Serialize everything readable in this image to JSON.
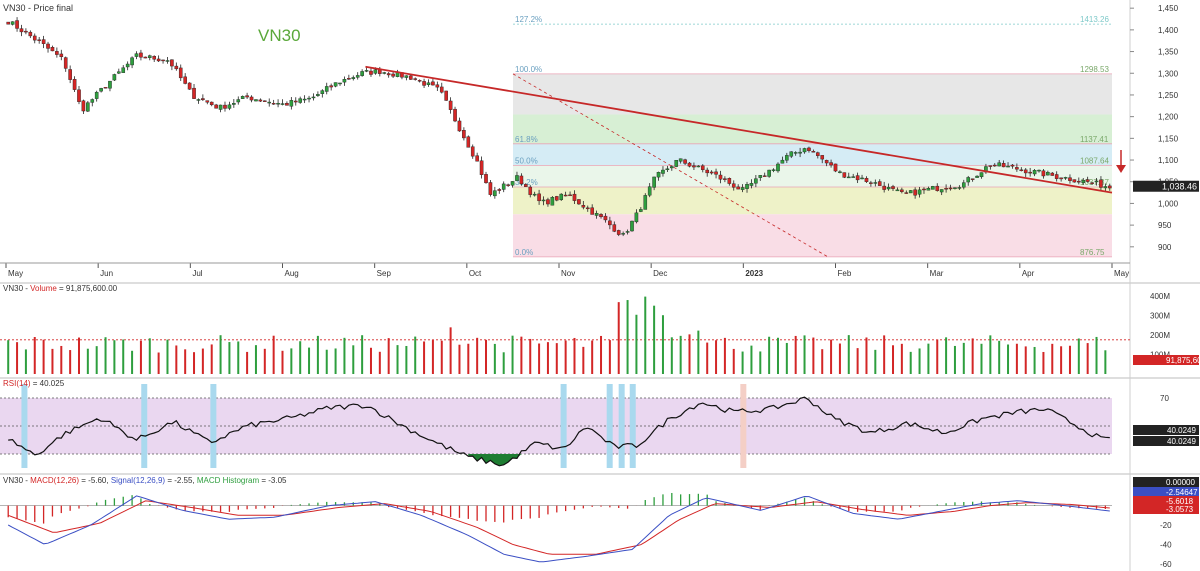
{
  "window": {
    "title": "VN30 - Price final"
  },
  "colors": {
    "up": "#2e9e3e",
    "down": "#d32626",
    "trend": "#c62828",
    "rsi_band": "#ead7f0",
    "rsi_marker": "#a9d9ee",
    "rsi_marker_red": "#f4cfc6",
    "macd_line": "#3b4fc4",
    "signal_line": "#d32626"
  },
  "chart_data": [
    {
      "type": "candlestick",
      "title": "VN30",
      "x_labels": [
        "May",
        "Jun",
        "Jul",
        "Aug",
        "Sep",
        "Oct",
        "Nov",
        "Dec",
        "2023",
        "Feb",
        "Mar",
        "Apr",
        "May"
      ],
      "yticks": [
        900,
        950,
        1000,
        1050,
        1100,
        1150,
        1200,
        1250,
        1300,
        1350,
        1400,
        1450
      ],
      "ylim": [
        865,
        1455
      ],
      "last_price_label": "1,038.46",
      "closes_approx": [
        {
          "x": 0,
          "y": 1420
        },
        {
          "x": 0.35,
          "y": 1370
        },
        {
          "x": 0.6,
          "y": 1330
        },
        {
          "x": 0.8,
          "y": 1215
        },
        {
          "x": 1.1,
          "y": 1280
        },
        {
          "x": 1.4,
          "y": 1340
        },
        {
          "x": 1.75,
          "y": 1330
        },
        {
          "x": 2.0,
          "y": 1250
        },
        {
          "x": 2.3,
          "y": 1220
        },
        {
          "x": 2.6,
          "y": 1245
        },
        {
          "x": 3.0,
          "y": 1228
        },
        {
          "x": 3.3,
          "y": 1242
        },
        {
          "x": 3.6,
          "y": 1280
        },
        {
          "x": 3.85,
          "y": 1300
        },
        {
          "x": 4.05,
          "y": 1305
        },
        {
          "x": 4.4,
          "y": 1290
        },
        {
          "x": 4.7,
          "y": 1260
        },
        {
          "x": 4.85,
          "y": 1200
        },
        {
          "x": 5.1,
          "y": 1100
        },
        {
          "x": 5.25,
          "y": 1020
        },
        {
          "x": 5.55,
          "y": 1060
        },
        {
          "x": 5.8,
          "y": 1000
        },
        {
          "x": 6.1,
          "y": 1020
        },
        {
          "x": 6.3,
          "y": 990
        },
        {
          "x": 6.5,
          "y": 960
        },
        {
          "x": 6.7,
          "y": 925
        },
        {
          "x": 6.85,
          "y": 975
        },
        {
          "x": 7.05,
          "y": 1060
        },
        {
          "x": 7.3,
          "y": 1100
        },
        {
          "x": 7.7,
          "y": 1065
        },
        {
          "x": 8.0,
          "y": 1030
        },
        {
          "x": 8.2,
          "y": 1060
        },
        {
          "x": 8.5,
          "y": 1110
        },
        {
          "x": 8.7,
          "y": 1130
        },
        {
          "x": 9.05,
          "y": 1070
        },
        {
          "x": 9.4,
          "y": 1050
        },
        {
          "x": 9.75,
          "y": 1020
        },
        {
          "x": 10.1,
          "y": 1035
        },
        {
          "x": 10.4,
          "y": 1045
        },
        {
          "x": 10.7,
          "y": 1090
        },
        {
          "x": 11.0,
          "y": 1080
        },
        {
          "x": 11.35,
          "y": 1065
        },
        {
          "x": 11.75,
          "y": 1050
        },
        {
          "x": 12.0,
          "y": 1038
        }
      ],
      "trendline": {
        "from": {
          "x": 3.9,
          "y": 1315
        },
        "to": {
          "x": 12.0,
          "y": 1025
        }
      },
      "fibonacci": {
        "levels": [
          {
            "label": "127.2%",
            "price": 1413.26
          },
          {
            "label": "100.0%",
            "price": 1298.53
          },
          {
            "label": "61.8%",
            "price": 1137.41
          },
          {
            "label": "50.0%",
            "price": 1087.64
          },
          {
            "label": "38.2%",
            "price": 1037.87
          },
          {
            "label": "0.0%",
            "price": 876.75
          }
        ],
        "price_labels": [
          "1413.26",
          "1298.53",
          "1137.41",
          "1087.64",
          "1037.87",
          "876.75"
        ],
        "zones": [
          {
            "from": 1205,
            "to": 1298.53,
            "color": "#e7e7e7"
          },
          {
            "from": 1137.41,
            "to": 1205,
            "color": "#d7efd4"
          },
          {
            "from": 1087.64,
            "to": 1137.41,
            "color": "#d5ecf5"
          },
          {
            "from": 1037.87,
            "to": 1087.64,
            "color": "#eaf6ea"
          },
          {
            "from": 975,
            "to": 1037.87,
            "color": "#eef2c8"
          },
          {
            "from": 876.75,
            "to": 975,
            "color": "#f9dde6"
          }
        ]
      }
    },
    {
      "type": "bar",
      "title_parts": {
        "series": "VN30 - ",
        "name": "Volume",
        "value": " = 91,875,600.00"
      },
      "yticks": [
        "400M",
        "300M",
        "200M",
        "100M"
      ],
      "reference_line_value": 175000000,
      "last_value_label": "91,875,600"
    },
    {
      "type": "line",
      "title_parts": {
        "name": "RSI(14)",
        "value": " = 40.025"
      },
      "ylim": [
        20,
        80
      ],
      "band": [
        30,
        70
      ],
      "mid": 50,
      "ytick": "70",
      "last_value_labels": [
        "40.0249",
        "40.0249"
      ],
      "oversold_marks_x": [
        0.2,
        1.5,
        2.25,
        6.05,
        6.55,
        6.68,
        6.8
      ],
      "overbought_marks_x": [
        8.0
      ],
      "values_approx": [
        {
          "x": 0,
          "y": 41
        },
        {
          "x": 0.3,
          "y": 29
        },
        {
          "x": 0.6,
          "y": 44
        },
        {
          "x": 1.0,
          "y": 56
        },
        {
          "x": 1.4,
          "y": 40
        },
        {
          "x": 1.8,
          "y": 53
        },
        {
          "x": 2.2,
          "y": 38
        },
        {
          "x": 2.6,
          "y": 50
        },
        {
          "x": 3.1,
          "y": 56
        },
        {
          "x": 3.5,
          "y": 63
        },
        {
          "x": 3.9,
          "y": 65
        },
        {
          "x": 4.3,
          "y": 50
        },
        {
          "x": 4.6,
          "y": 40
        },
        {
          "x": 5.0,
          "y": 28
        },
        {
          "x": 5.4,
          "y": 22
        },
        {
          "x": 5.75,
          "y": 38
        },
        {
          "x": 6.05,
          "y": 33
        },
        {
          "x": 6.3,
          "y": 50
        },
        {
          "x": 6.6,
          "y": 35
        },
        {
          "x": 6.85,
          "y": 36
        },
        {
          "x": 7.2,
          "y": 55
        },
        {
          "x": 7.55,
          "y": 67
        },
        {
          "x": 7.9,
          "y": 60
        },
        {
          "x": 8.3,
          "y": 62
        },
        {
          "x": 8.7,
          "y": 70
        },
        {
          "x": 9.0,
          "y": 55
        },
        {
          "x": 9.4,
          "y": 45
        },
        {
          "x": 9.8,
          "y": 52
        },
        {
          "x": 10.2,
          "y": 45
        },
        {
          "x": 10.6,
          "y": 55
        },
        {
          "x": 11.0,
          "y": 60
        },
        {
          "x": 11.3,
          "y": 62
        },
        {
          "x": 11.65,
          "y": 50
        },
        {
          "x": 11.9,
          "y": 41
        },
        {
          "x": 12.0,
          "y": 40
        }
      ]
    },
    {
      "type": "line",
      "title_parts": {
        "series": "VN30 - ",
        "macd": "MACD(12,26)",
        "macd_value": " = -5.60, ",
        "signal": "Signal(12,26,9)",
        "signal_value": " = -2.55, ",
        "hist": "MACD Histogram",
        "hist_value": " = -3.05"
      },
      "yticks": [
        "0",
        "-20",
        "-40",
        "-60"
      ],
      "ylim": [
        -62,
        18
      ],
      "last_value_labels": [
        "0.00000",
        "-2.54647",
        "-5.6018",
        "-3.0573"
      ],
      "macd_approx": [
        {
          "x": 0,
          "y": -20
        },
        {
          "x": 0.4,
          "y": -40
        },
        {
          "x": 0.9,
          "y": -20
        },
        {
          "x": 1.4,
          "y": 10
        },
        {
          "x": 1.9,
          "y": -5
        },
        {
          "x": 2.4,
          "y": -14
        },
        {
          "x": 2.9,
          "y": -12
        },
        {
          "x": 3.5,
          "y": 0
        },
        {
          "x": 4.0,
          "y": 4
        },
        {
          "x": 4.5,
          "y": -10
        },
        {
          "x": 5.0,
          "y": -30
        },
        {
          "x": 5.4,
          "y": -50
        },
        {
          "x": 5.8,
          "y": -58
        },
        {
          "x": 6.3,
          "y": -52
        },
        {
          "x": 6.8,
          "y": -45
        },
        {
          "x": 7.2,
          "y": -10
        },
        {
          "x": 7.6,
          "y": 8
        },
        {
          "x": 8.2,
          "y": -5
        },
        {
          "x": 8.7,
          "y": 10
        },
        {
          "x": 9.2,
          "y": -8
        },
        {
          "x": 9.7,
          "y": -14
        },
        {
          "x": 10.2,
          "y": -5
        },
        {
          "x": 10.6,
          "y": 2
        },
        {
          "x": 11.0,
          "y": 5
        },
        {
          "x": 11.5,
          "y": 0
        },
        {
          "x": 12.0,
          "y": -5.6
        }
      ],
      "signal_approx": [
        {
          "x": 0,
          "y": -10
        },
        {
          "x": 0.5,
          "y": -28
        },
        {
          "x": 1.0,
          "y": -18
        },
        {
          "x": 1.5,
          "y": 5
        },
        {
          "x": 2.0,
          "y": -2
        },
        {
          "x": 2.5,
          "y": -10
        },
        {
          "x": 3.0,
          "y": -10
        },
        {
          "x": 3.6,
          "y": -2
        },
        {
          "x": 4.1,
          "y": 2
        },
        {
          "x": 4.6,
          "y": -6
        },
        {
          "x": 5.1,
          "y": -22
        },
        {
          "x": 5.5,
          "y": -40
        },
        {
          "x": 5.9,
          "y": -50
        },
        {
          "x": 6.4,
          "y": -50
        },
        {
          "x": 6.9,
          "y": -40
        },
        {
          "x": 7.3,
          "y": -15
        },
        {
          "x": 7.7,
          "y": 2
        },
        {
          "x": 8.3,
          "y": -2
        },
        {
          "x": 8.8,
          "y": 4
        },
        {
          "x": 9.3,
          "y": -4
        },
        {
          "x": 9.8,
          "y": -10
        },
        {
          "x": 10.3,
          "y": -6
        },
        {
          "x": 10.7,
          "y": 0
        },
        {
          "x": 11.1,
          "y": 3
        },
        {
          "x": 11.6,
          "y": 1
        },
        {
          "x": 12.0,
          "y": -2.55
        }
      ]
    }
  ]
}
